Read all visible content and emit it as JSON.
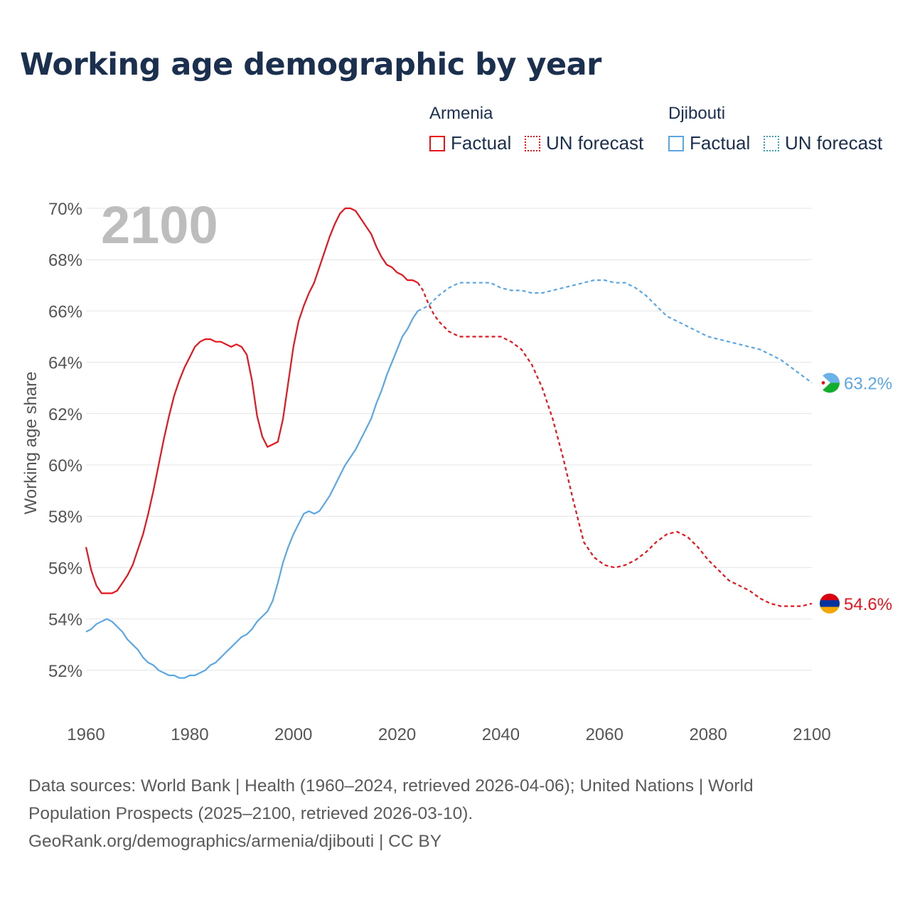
{
  "title": "Working age demographic by year",
  "legend": {
    "groups": [
      {
        "name": "Armenia",
        "color": "#e8131b",
        "factual_label": "Factual",
        "forecast_label": "UN forecast"
      },
      {
        "name": "Djibouti",
        "color": "#5aa7e6",
        "factual_label": "Factual",
        "forecast_label": "UN forecast"
      }
    ]
  },
  "year_watermark": "2100",
  "footer": {
    "line1": "Data sources: World Bank | Health (1960–2024, retrieved 2026-04-06); United Nations | World",
    "line2": "Population Prospects (2025–2100, retrieved 2026-03-10).",
    "line3": "GeoRank.org/demographics/armenia/djibouti | CC BY"
  },
  "chart_data": {
    "type": "line",
    "title": "Working age demographic by year",
    "xlabel": "",
    "ylabel": "Working age share",
    "xlim": [
      1960,
      2100
    ],
    "ylim": [
      50.5,
      70
    ],
    "x_ticks": [
      1960,
      1980,
      2000,
      2020,
      2040,
      2060,
      2080,
      2100
    ],
    "y_ticks": [
      52,
      54,
      56,
      58,
      60,
      62,
      64,
      66,
      68,
      70
    ],
    "y_tick_suffix": "%",
    "grid": true,
    "factual_end_year": 2024,
    "series": [
      {
        "name": "Armenia",
        "color": "#e8131b",
        "end_label": "54.6%",
        "flag": [
          "#d90012",
          "#0033a0",
          "#f2a800"
        ],
        "points": [
          [
            1960,
            56.8
          ],
          [
            1961,
            55.9
          ],
          [
            1962,
            55.3
          ],
          [
            1963,
            55.0
          ],
          [
            1964,
            55.0
          ],
          [
            1965,
            55.0
          ],
          [
            1966,
            55.1
          ],
          [
            1967,
            55.4
          ],
          [
            1968,
            55.7
          ],
          [
            1969,
            56.1
          ],
          [
            1970,
            56.7
          ],
          [
            1971,
            57.3
          ],
          [
            1972,
            58.1
          ],
          [
            1973,
            59.0
          ],
          [
            1974,
            60.0
          ],
          [
            1975,
            61.0
          ],
          [
            1976,
            61.9
          ],
          [
            1977,
            62.7
          ],
          [
            1978,
            63.3
          ],
          [
            1979,
            63.8
          ],
          [
            1980,
            64.2
          ],
          [
            1981,
            64.6
          ],
          [
            1982,
            64.8
          ],
          [
            1983,
            64.9
          ],
          [
            1984,
            64.9
          ],
          [
            1985,
            64.8
          ],
          [
            1986,
            64.8
          ],
          [
            1987,
            64.7
          ],
          [
            1988,
            64.6
          ],
          [
            1989,
            64.7
          ],
          [
            1990,
            64.6
          ],
          [
            1991,
            64.3
          ],
          [
            1992,
            63.3
          ],
          [
            1993,
            61.9
          ],
          [
            1994,
            61.1
          ],
          [
            1995,
            60.7
          ],
          [
            1996,
            60.8
          ],
          [
            1997,
            60.9
          ],
          [
            1998,
            61.8
          ],
          [
            1999,
            63.2
          ],
          [
            2000,
            64.6
          ],
          [
            2001,
            65.6
          ],
          [
            2002,
            66.2
          ],
          [
            2003,
            66.7
          ],
          [
            2004,
            67.1
          ],
          [
            2005,
            67.7
          ],
          [
            2006,
            68.3
          ],
          [
            2007,
            68.9
          ],
          [
            2008,
            69.4
          ],
          [
            2009,
            69.8
          ],
          [
            2010,
            70.0
          ],
          [
            2011,
            70.0
          ],
          [
            2012,
            69.9
          ],
          [
            2013,
            69.6
          ],
          [
            2014,
            69.3
          ],
          [
            2015,
            69.0
          ],
          [
            2016,
            68.5
          ],
          [
            2017,
            68.1
          ],
          [
            2018,
            67.8
          ],
          [
            2019,
            67.7
          ],
          [
            2020,
            67.5
          ],
          [
            2021,
            67.4
          ],
          [
            2022,
            67.2
          ],
          [
            2023,
            67.2
          ],
          [
            2024,
            67.1
          ],
          [
            2025,
            66.8
          ],
          [
            2026,
            66.3
          ],
          [
            2027,
            65.9
          ],
          [
            2028,
            65.6
          ],
          [
            2029,
            65.4
          ],
          [
            2030,
            65.2
          ],
          [
            2031,
            65.1
          ],
          [
            2032,
            65.0
          ],
          [
            2035,
            65.0
          ],
          [
            2040,
            65.0
          ],
          [
            2042,
            64.8
          ],
          [
            2044,
            64.5
          ],
          [
            2046,
            63.9
          ],
          [
            2048,
            63.0
          ],
          [
            2050,
            61.8
          ],
          [
            2052,
            60.3
          ],
          [
            2054,
            58.6
          ],
          [
            2056,
            57.0
          ],
          [
            2058,
            56.4
          ],
          [
            2060,
            56.1
          ],
          [
            2062,
            56.0
          ],
          [
            2064,
            56.1
          ],
          [
            2066,
            56.3
          ],
          [
            2068,
            56.6
          ],
          [
            2070,
            57.0
          ],
          [
            2072,
            57.3
          ],
          [
            2074,
            57.4
          ],
          [
            2076,
            57.2
          ],
          [
            2078,
            56.8
          ],
          [
            2080,
            56.3
          ],
          [
            2082,
            55.9
          ],
          [
            2084,
            55.5
          ],
          [
            2086,
            55.3
          ],
          [
            2088,
            55.1
          ],
          [
            2090,
            54.8
          ],
          [
            2092,
            54.6
          ],
          [
            2094,
            54.5
          ],
          [
            2096,
            54.5
          ],
          [
            2098,
            54.5
          ],
          [
            2100,
            54.6
          ]
        ]
      },
      {
        "name": "Djibouti",
        "color": "#5aa7e6",
        "end_label": "63.2%",
        "flag": [
          "#6ab2e7",
          "#12ad2b",
          "#ffffff",
          "#d7141a"
        ],
        "points": [
          [
            1960,
            53.5
          ],
          [
            1961,
            53.6
          ],
          [
            1962,
            53.8
          ],
          [
            1963,
            53.9
          ],
          [
            1964,
            54.0
          ],
          [
            1965,
            53.9
          ],
          [
            1966,
            53.7
          ],
          [
            1967,
            53.5
          ],
          [
            1968,
            53.2
          ],
          [
            1969,
            53.0
          ],
          [
            1970,
            52.8
          ],
          [
            1971,
            52.5
          ],
          [
            1972,
            52.3
          ],
          [
            1973,
            52.2
          ],
          [
            1974,
            52.0
          ],
          [
            1975,
            51.9
          ],
          [
            1976,
            51.8
          ],
          [
            1977,
            51.8
          ],
          [
            1978,
            51.7
          ],
          [
            1979,
            51.7
          ],
          [
            1980,
            51.8
          ],
          [
            1981,
            51.8
          ],
          [
            1982,
            51.9
          ],
          [
            1983,
            52.0
          ],
          [
            1984,
            52.2
          ],
          [
            1985,
            52.3
          ],
          [
            1986,
            52.5
          ],
          [
            1987,
            52.7
          ],
          [
            1988,
            52.9
          ],
          [
            1989,
            53.1
          ],
          [
            1990,
            53.3
          ],
          [
            1991,
            53.4
          ],
          [
            1992,
            53.6
          ],
          [
            1993,
            53.9
          ],
          [
            1994,
            54.1
          ],
          [
            1995,
            54.3
          ],
          [
            1996,
            54.7
          ],
          [
            1997,
            55.4
          ],
          [
            1998,
            56.2
          ],
          [
            1999,
            56.8
          ],
          [
            2000,
            57.3
          ],
          [
            2001,
            57.7
          ],
          [
            2002,
            58.1
          ],
          [
            2003,
            58.2
          ],
          [
            2004,
            58.1
          ],
          [
            2005,
            58.2
          ],
          [
            2006,
            58.5
          ],
          [
            2007,
            58.8
          ],
          [
            2008,
            59.2
          ],
          [
            2009,
            59.6
          ],
          [
            2010,
            60.0
          ],
          [
            2011,
            60.3
          ],
          [
            2012,
            60.6
          ],
          [
            2013,
            61.0
          ],
          [
            2014,
            61.4
          ],
          [
            2015,
            61.8
          ],
          [
            2016,
            62.4
          ],
          [
            2017,
            62.9
          ],
          [
            2018,
            63.5
          ],
          [
            2019,
            64.0
          ],
          [
            2020,
            64.5
          ],
          [
            2021,
            65.0
          ],
          [
            2022,
            65.3
          ],
          [
            2023,
            65.7
          ],
          [
            2024,
            66.0
          ],
          [
            2026,
            66.2
          ],
          [
            2028,
            66.6
          ],
          [
            2030,
            66.9
          ],
          [
            2032,
            67.1
          ],
          [
            2035,
            67.1
          ],
          [
            2038,
            67.1
          ],
          [
            2040,
            66.9
          ],
          [
            2042,
            66.8
          ],
          [
            2044,
            66.8
          ],
          [
            2046,
            66.7
          ],
          [
            2048,
            66.7
          ],
          [
            2050,
            66.8
          ],
          [
            2052,
            66.9
          ],
          [
            2054,
            67.0
          ],
          [
            2056,
            67.1
          ],
          [
            2058,
            67.2
          ],
          [
            2060,
            67.2
          ],
          [
            2062,
            67.1
          ],
          [
            2064,
            67.1
          ],
          [
            2066,
            66.9
          ],
          [
            2068,
            66.6
          ],
          [
            2070,
            66.2
          ],
          [
            2072,
            65.8
          ],
          [
            2074,
            65.6
          ],
          [
            2076,
            65.4
          ],
          [
            2078,
            65.2
          ],
          [
            2080,
            65.0
          ],
          [
            2082,
            64.9
          ],
          [
            2084,
            64.8
          ],
          [
            2086,
            64.7
          ],
          [
            2088,
            64.6
          ],
          [
            2090,
            64.5
          ],
          [
            2092,
            64.3
          ],
          [
            2094,
            64.1
          ],
          [
            2096,
            63.8
          ],
          [
            2098,
            63.5
          ],
          [
            2100,
            63.2
          ]
        ]
      }
    ]
  }
}
